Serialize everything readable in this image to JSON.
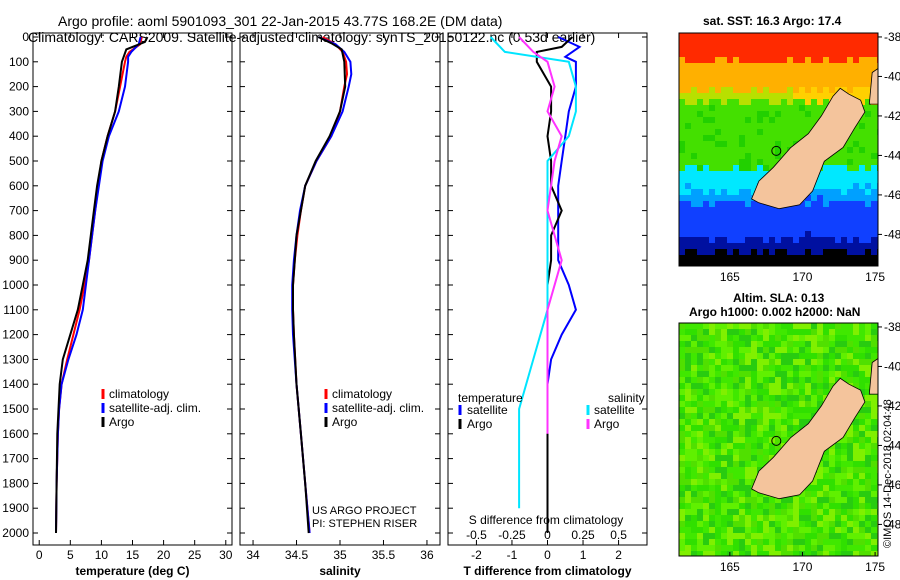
{
  "header": {
    "line1": "Argo profile: aoml 5901093_301 22-Jan-2015 43.77S 168.2E (DM data)",
    "line2": "Climatology: CARS2009. Satellite-adjusted climatology: synTS_20150122.nc (0.53d earlier)"
  },
  "map_top": {
    "title": "sat. SST: 16.3 Argo: 17.4"
  },
  "map_bottom": {
    "title1": "Altim. SLA: 0.13",
    "title2": "Argo h1000: 0.002 h2000: NaN"
  },
  "credits": {
    "project": "US ARGO PROJECT",
    "pi": "PI: STEPHEN RISER"
  },
  "watermark": "©IMOS 14-Dec-2018 02:04:48",
  "colors": {
    "climatology": "#ff0000",
    "satellite": "#0000ff",
    "argo": "#000000",
    "sat_salinity": "#00e5ff",
    "argo_salinity": "#ff33ff",
    "land": "#f4c49c"
  },
  "chart_data": [
    {
      "type": "line",
      "xlabel": "temperature (deg C)",
      "xlim": [
        -1,
        31
      ],
      "xticks": [
        0,
        5,
        10,
        15,
        20,
        25,
        30
      ],
      "ylim": [
        0,
        2050
      ],
      "yticks": [
        0,
        100,
        200,
        300,
        400,
        500,
        600,
        700,
        800,
        900,
        1000,
        1100,
        1200,
        1300,
        1400,
        1500,
        1600,
        1700,
        1800,
        1900,
        2000
      ],
      "legend": [
        "climatology",
        "satellite-adj. clim.",
        "Argo"
      ],
      "series": [
        {
          "name": "climatology",
          "color": "#ff0000",
          "points": [
            [
              16.5,
              0
            ],
            [
              16.2,
              30
            ],
            [
              14.5,
              60
            ],
            [
              14.0,
              80
            ],
            [
              13.8,
              100
            ],
            [
              13.0,
              200
            ],
            [
              12.2,
              300
            ],
            [
              11.0,
              400
            ],
            [
              10.0,
              500
            ],
            [
              9.5,
              600
            ],
            [
              9.0,
              700
            ],
            [
              8.5,
              800
            ],
            [
              8.0,
              900
            ],
            [
              7.3,
              1000
            ],
            [
              6.5,
              1100
            ],
            [
              5.5,
              1200
            ],
            [
              4.5,
              1300
            ],
            [
              3.6,
              1400
            ],
            [
              3.2,
              1500
            ],
            [
              3.0,
              1600
            ],
            [
              2.8,
              1800
            ],
            [
              2.7,
              2000
            ]
          ]
        },
        {
          "name": "satellite-adj. clim.",
          "color": "#0000ff",
          "points": [
            [
              16.3,
              0
            ],
            [
              16.0,
              30
            ],
            [
              14.8,
              60
            ],
            [
              14.3,
              80
            ],
            [
              14.3,
              100
            ],
            [
              13.8,
              200
            ],
            [
              12.8,
              300
            ],
            [
              11.2,
              400
            ],
            [
              10.2,
              500
            ],
            [
              9.6,
              600
            ],
            [
              9.0,
              700
            ],
            [
              8.5,
              800
            ],
            [
              8.0,
              900
            ],
            [
              7.5,
              1000
            ],
            [
              7.0,
              1100
            ],
            [
              6.0,
              1200
            ],
            [
              4.7,
              1300
            ],
            [
              3.6,
              1400
            ],
            [
              3.2,
              1500
            ],
            [
              3.0,
              1600
            ],
            [
              2.8,
              1800
            ],
            [
              2.7,
              2000
            ]
          ]
        },
        {
          "name": "Argo",
          "color": "#000000",
          "points": [
            [
              17.4,
              0
            ],
            [
              17.0,
              20
            ],
            [
              14.0,
              50
            ],
            [
              13.3,
              100
            ],
            [
              12.8,
              200
            ],
            [
              12.2,
              300
            ],
            [
              11.0,
              400
            ],
            [
              10.0,
              500
            ],
            [
              9.3,
              600
            ],
            [
              8.8,
              700
            ],
            [
              8.3,
              800
            ],
            [
              7.8,
              900
            ],
            [
              7.0,
              1000
            ],
            [
              6.2,
              1100
            ],
            [
              5.0,
              1200
            ],
            [
              3.8,
              1300
            ],
            [
              3.3,
              1400
            ],
            [
              3.1,
              1500
            ],
            [
              2.9,
              1600
            ],
            [
              2.8,
              1800
            ],
            [
              2.7,
              2000
            ]
          ]
        }
      ]
    },
    {
      "type": "line",
      "xlabel": "salinity",
      "xlim": [
        33.85,
        36.15
      ],
      "xticks": [
        34,
        34.5,
        35,
        35.5,
        36
      ],
      "ylim": [
        0,
        2050
      ],
      "legend": [
        "climatology",
        "satellite-adj. clim.",
        "Argo"
      ],
      "series": [
        {
          "name": "climatology",
          "color": "#ff0000",
          "points": [
            [
              34.8,
              0
            ],
            [
              34.95,
              30
            ],
            [
              35.03,
              60
            ],
            [
              35.07,
              100
            ],
            [
              35.08,
              150
            ],
            [
              35.05,
              200
            ],
            [
              35.0,
              300
            ],
            [
              34.9,
              400
            ],
            [
              34.73,
              500
            ],
            [
              34.6,
              600
            ],
            [
              34.55,
              700
            ],
            [
              34.51,
              800
            ],
            [
              34.48,
              900
            ],
            [
              34.46,
              1000
            ],
            [
              34.46,
              1100
            ],
            [
              34.47,
              1200
            ],
            [
              34.5,
              1400
            ],
            [
              34.55,
              1600
            ],
            [
              34.6,
              1800
            ],
            [
              34.65,
              2000
            ]
          ]
        },
        {
          "name": "satellite-adj. clim.",
          "color": "#0000ff",
          "points": [
            [
              34.75,
              0
            ],
            [
              34.95,
              30
            ],
            [
              35.05,
              60
            ],
            [
              35.12,
              100
            ],
            [
              35.13,
              150
            ],
            [
              35.1,
              200
            ],
            [
              35.03,
              300
            ],
            [
              34.9,
              400
            ],
            [
              34.73,
              500
            ],
            [
              34.6,
              600
            ],
            [
              34.54,
              700
            ],
            [
              34.5,
              800
            ],
            [
              34.47,
              900
            ],
            [
              34.45,
              1000
            ],
            [
              34.45,
              1100
            ],
            [
              34.46,
              1200
            ],
            [
              34.5,
              1400
            ],
            [
              34.55,
              1600
            ],
            [
              34.6,
              1800
            ],
            [
              34.65,
              2000
            ]
          ]
        },
        {
          "name": "Argo",
          "color": "#000000",
          "points": [
            [
              34.75,
              0
            ],
            [
              34.9,
              25
            ],
            [
              35.02,
              50
            ],
            [
              35.05,
              100
            ],
            [
              35.06,
              200
            ],
            [
              35.0,
              300
            ],
            [
              34.88,
              400
            ],
            [
              34.72,
              500
            ],
            [
              34.6,
              600
            ],
            [
              34.55,
              700
            ],
            [
              34.5,
              800
            ],
            [
              34.48,
              900
            ],
            [
              34.46,
              1000
            ],
            [
              34.46,
              1100
            ],
            [
              34.47,
              1200
            ],
            [
              34.5,
              1400
            ],
            [
              34.55,
              1600
            ],
            [
              34.6,
              1800
            ],
            [
              34.64,
              2000
            ]
          ]
        }
      ]
    },
    {
      "type": "line",
      "xlabel": "T difference from climatology",
      "xlim": [
        -2.8,
        2.8
      ],
      "xticks": [
        -2,
        -1,
        0,
        1,
        2
      ],
      "xlabel_top": "S difference from climatology",
      "xticks_top": [
        -0.5,
        -0.25,
        0,
        0.25,
        0.5
      ],
      "ylim": [
        0,
        2050
      ],
      "legend_left_title": "temperature",
      "legend_left": [
        "satellite",
        "Argo"
      ],
      "legend_right_title": "salinity",
      "legend_right": [
        "satellite",
        "Argo"
      ],
      "series": [
        {
          "name": "satellite",
          "quantity": "temperature",
          "color": "#0000ff",
          "points": [
            [
              0.3,
              0
            ],
            [
              0.9,
              40
            ],
            [
              0.5,
              80
            ],
            [
              0.8,
              100
            ],
            [
              0.8,
              200
            ],
            [
              0.6,
              300
            ],
            [
              0.5,
              400
            ],
            [
              0.4,
              500
            ],
            [
              0.3,
              600
            ],
            [
              0.3,
              700
            ],
            [
              0.3,
              800
            ],
            [
              0.3,
              900
            ],
            [
              0.6,
              1000
            ],
            [
              0.8,
              1100
            ],
            [
              0.4,
              1200
            ],
            [
              0.1,
              1300
            ],
            [
              0.0,
              1400
            ],
            [
              0.0,
              1600
            ],
            [
              0.0,
              1800
            ],
            [
              0.0,
              2000
            ]
          ]
        },
        {
          "name": "Argo",
          "quantity": "temperature",
          "color": "#000000",
          "points": [
            [
              0.7,
              0
            ],
            [
              0.4,
              40
            ],
            [
              -0.3,
              60
            ],
            [
              -0.3,
              100
            ],
            [
              0.1,
              200
            ],
            [
              0.1,
              300
            ],
            [
              0.0,
              400
            ],
            [
              0.1,
              500
            ],
            [
              0.1,
              600
            ],
            [
              0.4,
              700
            ],
            [
              0.1,
              800
            ],
            [
              0.1,
              900
            ],
            [
              0.0,
              1000
            ],
            [
              0.0,
              1100
            ],
            [
              0.0,
              1200
            ],
            [
              0.0,
              1400
            ],
            [
              0.0,
              1600
            ],
            [
              0.0,
              1800
            ],
            [
              0.0,
              2000
            ]
          ]
        },
        {
          "name": "satellite",
          "quantity": "salinity",
          "color": "#00e5ff",
          "points": [
            [
              -0.4,
              0
            ],
            [
              -0.3,
              60
            ],
            [
              0.15,
              100
            ],
            [
              0.2,
              200
            ],
            [
              0.2,
              300
            ],
            [
              0.15,
              400
            ],
            [
              0.0,
              500
            ],
            [
              0.0,
              700
            ],
            [
              0.0,
              900
            ],
            [
              0.0,
              1100
            ],
            [
              -0.1,
              1300
            ],
            [
              -0.2,
              1500
            ],
            [
              -0.2,
              1700
            ],
            [
              -0.2,
              1900
            ]
          ]
        },
        {
          "name": "Argo",
          "quantity": "salinity",
          "color": "#ff33ff",
          "points": [
            [
              -0.2,
              0
            ],
            [
              -0.1,
              60
            ],
            [
              0.0,
              100
            ],
            [
              0.05,
              200
            ],
            [
              0.0,
              300
            ],
            [
              0.1,
              400
            ],
            [
              0.05,
              500
            ],
            [
              0.0,
              700
            ],
            [
              0.1,
              900
            ],
            [
              0.0,
              1100
            ],
            [
              0.0,
              1300
            ],
            [
              0.0,
              1500
            ],
            [
              0.0,
              1600
            ]
          ]
        }
      ]
    },
    {
      "type": "heatmap",
      "title": "sat. SST: 16.3 Argo: 17.4",
      "xlim": [
        161.5,
        175.2
      ],
      "xticks": [
        165,
        170,
        175
      ],
      "ylim": [
        -49.6,
        -37.8
      ],
      "yticks": [
        -38,
        -40,
        -42,
        -44,
        -46,
        -48
      ],
      "argo_position": [
        168.2,
        -43.77
      ]
    },
    {
      "type": "heatmap",
      "title": "Altim. SLA: 0.13",
      "subtitle": "Argo h1000: 0.002 h2000: NaN",
      "xlim": [
        161.5,
        175.2
      ],
      "xticks": [
        165,
        170,
        175
      ],
      "ylim": [
        -49.6,
        -37.8
      ],
      "yticks": [
        -38,
        -40,
        -42,
        -44,
        -46,
        -48
      ],
      "argo_position": [
        168.2,
        -43.77
      ]
    }
  ]
}
